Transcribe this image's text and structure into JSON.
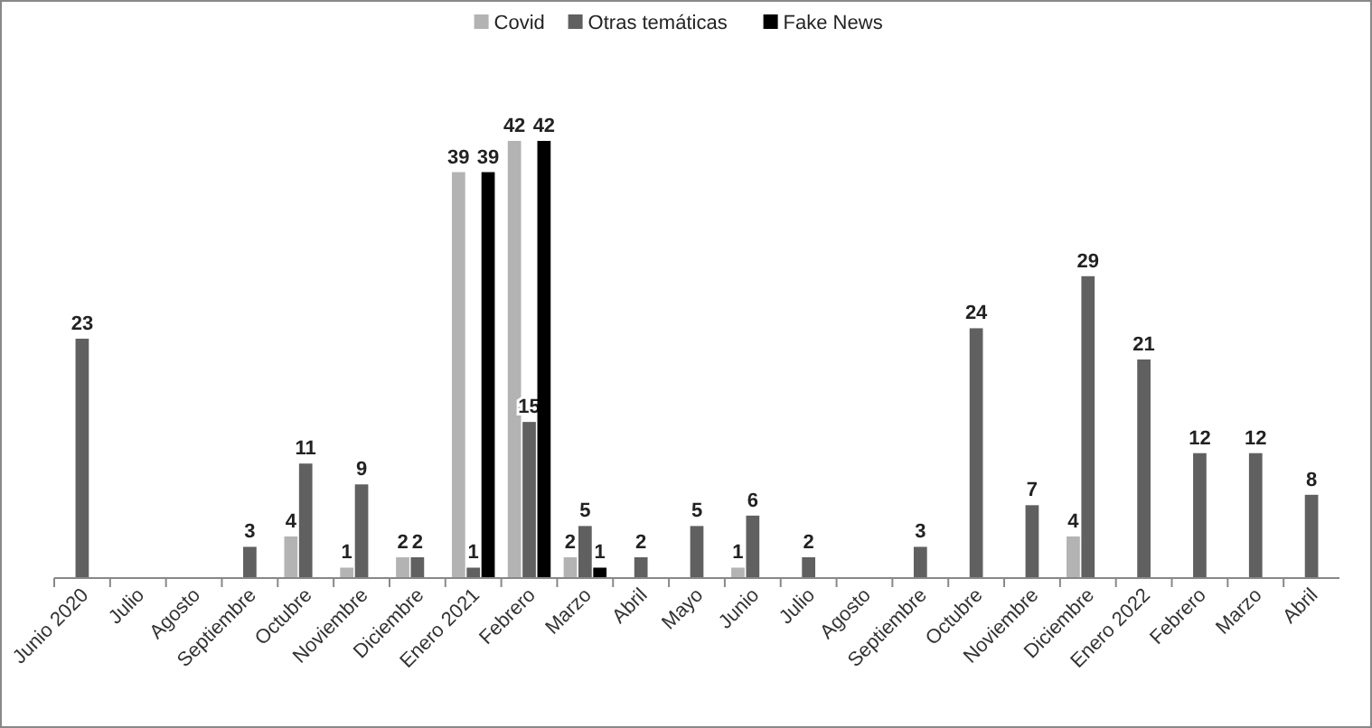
{
  "chart_data": {
    "type": "bar",
    "categories": [
      "Junio 2020",
      "Julio",
      "Agosto",
      "Septiembre",
      "Octubre",
      "Noviembre",
      "Diciembre",
      "Enero 2021",
      "Febrero",
      "Marzo",
      "Abril",
      "Mayo",
      "Junio",
      "Julio",
      "Agosto",
      "Septiembre",
      "Octubre",
      "Noviembre",
      "Diciembre",
      "Enero 2022",
      "Febrero",
      "Marzo",
      "Abril"
    ],
    "series": [
      {
        "name": "Covid",
        "color": "#b3b3b3",
        "values": [
          null,
          null,
          null,
          null,
          4,
          1,
          2,
          39,
          42,
          2,
          null,
          null,
          1,
          null,
          null,
          null,
          null,
          null,
          4,
          null,
          null,
          null,
          null
        ]
      },
      {
        "name": "Otras temáticas",
        "color": "#606060",
        "values": [
          23,
          null,
          null,
          3,
          11,
          9,
          2,
          1,
          15,
          5,
          2,
          5,
          6,
          2,
          null,
          3,
          24,
          7,
          29,
          21,
          12,
          12,
          8
        ]
      },
      {
        "name": "Fake News",
        "color": "#000000",
        "values": [
          null,
          null,
          null,
          null,
          null,
          null,
          null,
          39,
          42,
          1,
          null,
          null,
          null,
          null,
          null,
          null,
          null,
          null,
          null,
          null,
          null,
          null,
          null
        ]
      }
    ],
    "data_labels": true,
    "legend": "top"
  }
}
